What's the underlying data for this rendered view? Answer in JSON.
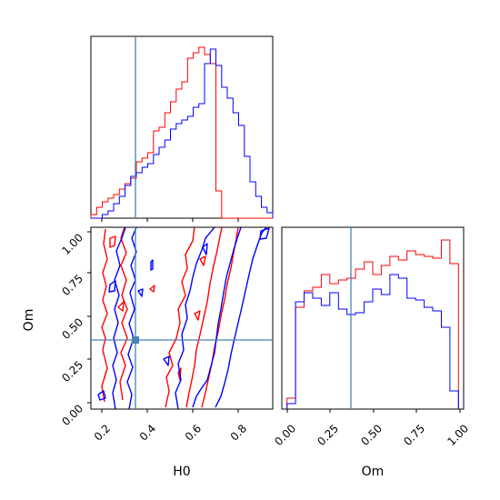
{
  "chart_data": {
    "type": "corner",
    "parameters": [
      "H0",
      "Om"
    ],
    "truth": {
      "H0": 0.35,
      "Om": 0.375
    },
    "colors": {
      "series_red": "#ff0000",
      "series_blue": "#0000ff",
      "truth": "#4682b4",
      "axes": "#000000"
    },
    "panels": [
      {
        "id": "hist-H0",
        "type": "histogram-step",
        "xlim": [
          0.15,
          0.95
        ],
        "ylim": [
          0,
          1
        ],
        "bin_edges": [
          0.15,
          0.175,
          0.2,
          0.225,
          0.25,
          0.275,
          0.3,
          0.325,
          0.35,
          0.375,
          0.4,
          0.425,
          0.45,
          0.475,
          0.5,
          0.525,
          0.55,
          0.575,
          0.6,
          0.625,
          0.65,
          0.675,
          0.7,
          0.725,
          0.75,
          0.775,
          0.8,
          0.825,
          0.85,
          0.875,
          0.9,
          0.925,
          0.95
        ],
        "series": [
          {
            "color": "red",
            "values": [
              0.02,
              0.06,
              0.09,
              0.11,
              0.13,
              0.16,
              0.19,
              0.22,
              0.31,
              0.33,
              0.36,
              0.48,
              0.5,
              0.58,
              0.64,
              0.71,
              0.75,
              0.88,
              0.91,
              0.94,
              0.9,
              0.85,
              0.15,
              0,
              0,
              0,
              0,
              0,
              0,
              0,
              0,
              0
            ]
          },
          {
            "color": "blue",
            "values": [
              0,
              0,
              0.02,
              0.04,
              0.08,
              0.12,
              0.18,
              0.23,
              0.25,
              0.28,
              0.3,
              0.35,
              0.39,
              0.43,
              0.49,
              0.52,
              0.54,
              0.56,
              0.61,
              0.63,
              0.85,
              0.93,
              0.84,
              0.72,
              0.66,
              0.58,
              0.51,
              0.34,
              0.2,
              0.12,
              0.06,
              0.03
            ]
          }
        ]
      },
      {
        "id": "contour-H0-Om",
        "type": "contour",
        "xlim": [
          0.15,
          0.95
        ],
        "ylim": [
          -0.02,
          1.02
        ],
        "xticks": [
          "0.2",
          "0.4",
          "0.6",
          "0.8"
        ],
        "yticks": [
          "0.00",
          "0.25",
          "0.50",
          "0.75",
          "1.00"
        ],
        "xlabel": "H0",
        "ylabel": "Om"
      },
      {
        "id": "hist-Om",
        "type": "histogram-step",
        "xlim": [
          -0.03,
          1.03
        ],
        "ylim": [
          0,
          1
        ],
        "bin_edges": [
          0,
          0.05,
          0.1,
          0.15,
          0.2,
          0.25,
          0.3,
          0.35,
          0.4,
          0.45,
          0.5,
          0.55,
          0.6,
          0.65,
          0.7,
          0.75,
          0.8,
          0.85,
          0.9,
          0.95,
          1.0
        ],
        "series": [
          {
            "color": "red",
            "values": [
              0.06,
              0.56,
              0.65,
              0.67,
              0.74,
              0.69,
              0.71,
              0.72,
              0.77,
              0.81,
              0.74,
              0.79,
              0.84,
              0.82,
              0.87,
              0.85,
              0.84,
              0.83,
              0.93,
              0.8
            ]
          },
          {
            "color": "blue",
            "values": [
              0.03,
              0.59,
              0.64,
              0.61,
              0.57,
              0.64,
              0.55,
              0.52,
              0.53,
              0.59,
              0.66,
              0.63,
              0.74,
              0.72,
              0.61,
              0.6,
              0.56,
              0.54,
              0.45,
              0.1
            ]
          }
        ],
        "xticks": [
          "0.00",
          "0.25",
          "0.50",
          "0.75",
          "1.00"
        ],
        "xlabel": "Om"
      }
    ]
  }
}
